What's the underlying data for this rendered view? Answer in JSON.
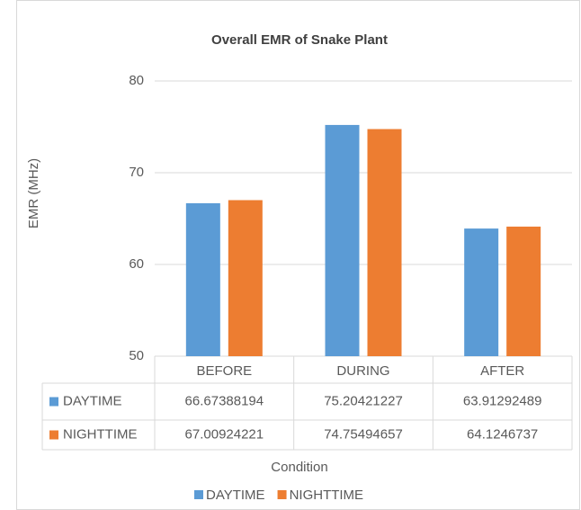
{
  "chart_data": {
    "type": "bar",
    "title": "Overall EMR of Snake Plant",
    "x_label": "Condition",
    "y_label": "EMR (MHz)",
    "categories": [
      "BEFORE",
      "DURING",
      "AFTER"
    ],
    "series": [
      {
        "name": "DAYTIME",
        "color": "#5b9bd5",
        "values": [
          66.67388194,
          75.20421227,
          63.91292489
        ]
      },
      {
        "name": "NIGHTTIME",
        "color": "#ed7d31",
        "values": [
          67.00924221,
          74.75494657,
          64.1246737
        ]
      }
    ],
    "ylim": [
      50,
      80
    ],
    "yticks": [
      50,
      60,
      70,
      80
    ],
    "grid": true,
    "legend": "bottom",
    "data_table": true
  }
}
